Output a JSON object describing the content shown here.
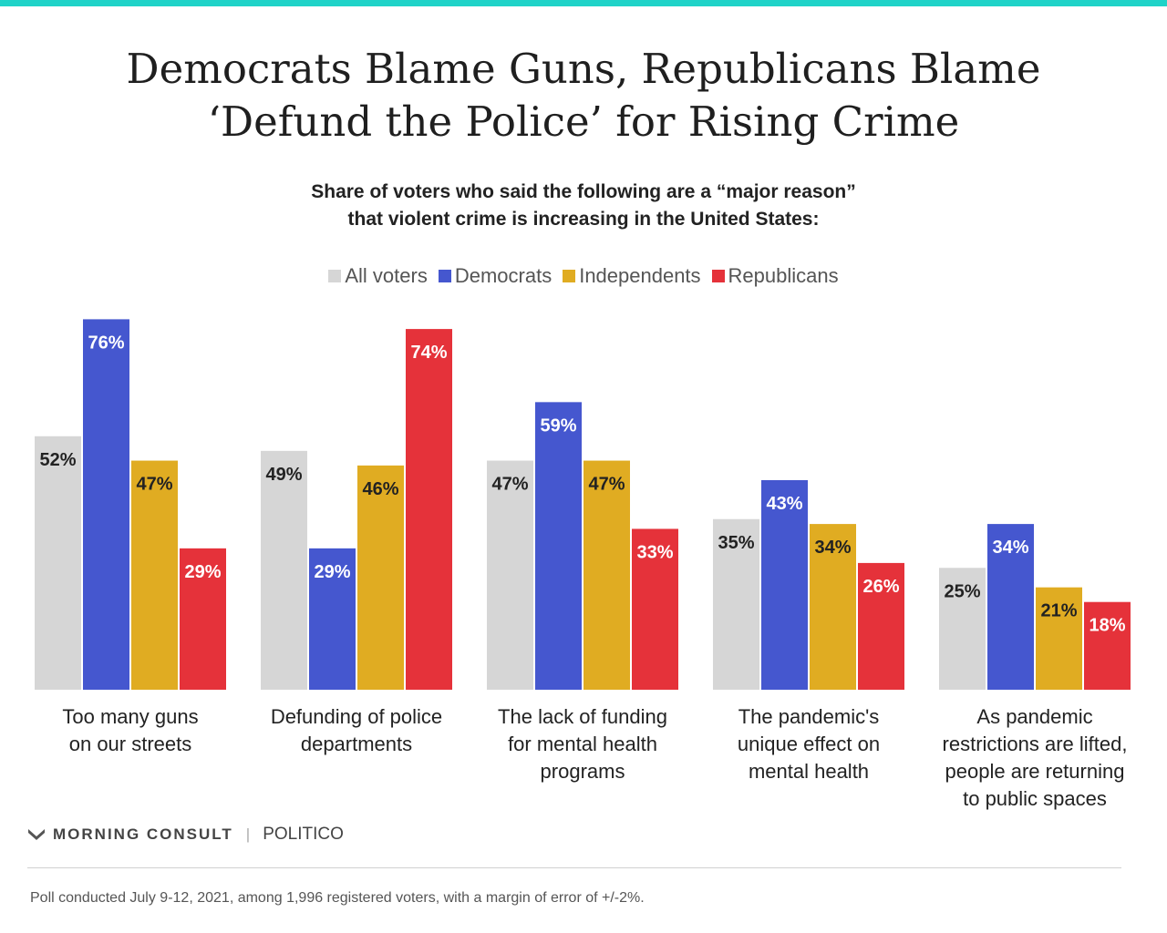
{
  "colors": {
    "accent": "#1fd3c8",
    "all_voters": "#d6d6d6",
    "democrats": "#4557cf",
    "independents": "#e0ac22",
    "republicans": "#e5323a"
  },
  "title": {
    "line1": "Democrats Blame Guns, Republicans Blame",
    "line2": "‘Defund the Police’ for Rising Crime"
  },
  "subtitle": {
    "line1": "Share of voters who said the following are a “major reason”",
    "line2": "that violent crime is increasing in the United States:"
  },
  "chart_data": {
    "type": "bar",
    "categories": [
      [
        "Too many guns",
        "on our streets"
      ],
      [
        "Defunding of police",
        "departments"
      ],
      [
        "The lack of funding",
        "for mental health",
        "programs"
      ],
      [
        "The pandemic's",
        "unique effect on",
        "mental health"
      ],
      [
        "As pandemic",
        "restrictions are lifted,",
        "people are returning",
        "to public spaces"
      ]
    ],
    "series": [
      {
        "name": "All voters",
        "values": [
          52,
          49,
          47,
          35,
          25
        ],
        "labels": [
          "52%",
          "49%",
          "47%",
          "35%",
          "25%"
        ]
      },
      {
        "name": "Democrats",
        "values": [
          76,
          29,
          59,
          43,
          34
        ],
        "labels": [
          "76%",
          "29%",
          "59%",
          "43%",
          "34%"
        ]
      },
      {
        "name": "Independents",
        "values": [
          47,
          46,
          47,
          34,
          21
        ],
        "labels": [
          "47%",
          "46%",
          "47%",
          "34%",
          "21%"
        ]
      },
      {
        "name": "Republicans",
        "values": [
          29,
          74,
          33,
          26,
          18
        ],
        "labels": [
          "29%",
          "74%",
          "33%",
          "26%",
          "18%"
        ]
      }
    ],
    "ylim": [
      0,
      100
    ],
    "legend": "top-center",
    "grid": false
  },
  "footer": {
    "brand": "MORNING CONSULT",
    "partner": "POLITICO",
    "note": "Poll conducted July 9-12, 2021, among 1,996 registered voters, with a margin of error of +/-2%."
  }
}
